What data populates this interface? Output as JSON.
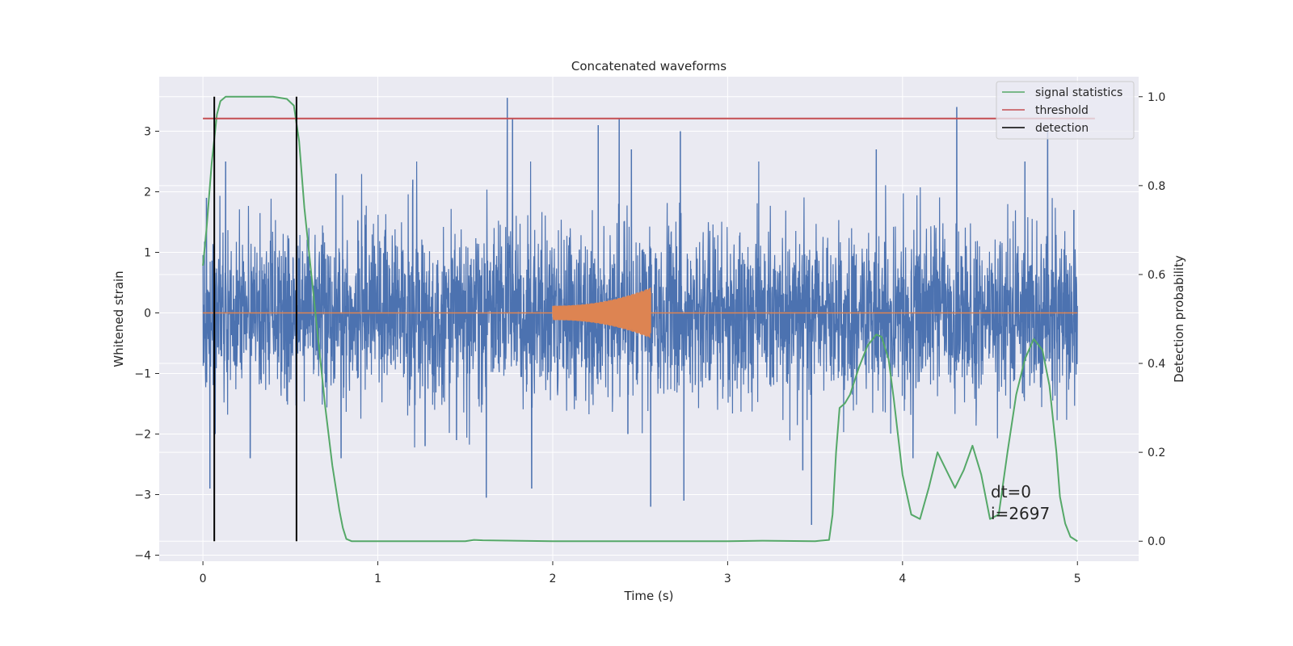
{
  "chart_data": {
    "type": "line",
    "title": "Concatenated waveforms",
    "xlabel": "Time (s)",
    "ylabel": "Whitened strain",
    "ylabel_right": "Detection probability",
    "xlim": [
      -0.25,
      5.35
    ],
    "ylim": [
      -4.1,
      3.9
    ],
    "ylim_right": [
      -0.045,
      1.045
    ],
    "x_ticks": [
      0,
      1,
      2,
      3,
      4,
      5
    ],
    "y_ticks": [
      -4,
      -3,
      -2,
      -1,
      0,
      1,
      2,
      3
    ],
    "y_ticks_right": [
      0.0,
      0.2,
      0.4,
      0.6,
      0.8,
      1.0
    ],
    "x_tick_labels": [
      "0",
      "1",
      "2",
      "3",
      "4",
      "5"
    ],
    "y_tick_labels": [
      "−4",
      "−3",
      "−2",
      "−1",
      "0",
      "1",
      "2",
      "3"
    ],
    "y_tick_labels_right": [
      "0.0",
      "0.2",
      "0.4",
      "0.6",
      "0.8",
      "1.0"
    ],
    "grid": true,
    "legend_position": "top-right",
    "legend": [
      "signal statistics",
      "threshold",
      "detection"
    ],
    "colors": {
      "background": "#eaeaf2",
      "grid": "#ffffff",
      "strain": "#4c72b0",
      "template": "#dd8452",
      "statistics": "#55a868",
      "threshold": "#c44e52",
      "detection": "#000000"
    },
    "series": [
      {
        "name": "",
        "axis": "left",
        "kind": "noise",
        "x_range": [
          0,
          5
        ],
        "typical_envelope": [
          -1.4,
          1.6
        ],
        "peak_points": [
          {
            "x": 0.02,
            "y": 1.9
          },
          {
            "x": 0.04,
            "y": -2.9
          },
          {
            "x": 0.07,
            "y": -2.0
          },
          {
            "x": 0.13,
            "y": 2.5
          },
          {
            "x": 0.27,
            "y": -2.4
          },
          {
            "x": 0.76,
            "y": 2.3
          },
          {
            "x": 0.79,
            "y": -2.4
          },
          {
            "x": 1.2,
            "y": 2.2
          },
          {
            "x": 1.27,
            "y": -2.2
          },
          {
            "x": 1.45,
            "y": -2.1
          },
          {
            "x": 1.62,
            "y": -3.05
          },
          {
            "x": 1.74,
            "y": 3.55
          },
          {
            "x": 1.77,
            "y": 3.2
          },
          {
            "x": 1.88,
            "y": -2.9
          },
          {
            "x": 2.26,
            "y": 3.1
          },
          {
            "x": 2.38,
            "y": 3.2
          },
          {
            "x": 2.43,
            "y": -2.0
          },
          {
            "x": 2.45,
            "y": 2.7
          },
          {
            "x": 2.56,
            "y": -3.2
          },
          {
            "x": 2.73,
            "y": 3.0
          },
          {
            "x": 2.75,
            "y": -3.1
          },
          {
            "x": 3.43,
            "y": -2.6
          },
          {
            "x": 3.48,
            "y": -3.5
          },
          {
            "x": 3.85,
            "y": 2.7
          },
          {
            "x": 4.06,
            "y": -2.4
          },
          {
            "x": 4.31,
            "y": 3.4
          },
          {
            "x": 4.7,
            "y": 2.5
          },
          {
            "x": 4.83,
            "y": 3.0
          },
          {
            "x": 4.98,
            "y": 1.7
          }
        ]
      },
      {
        "name": "",
        "axis": "left",
        "kind": "chirp",
        "x_range": [
          2.0,
          2.56
        ],
        "y_value": 0,
        "amplitude_start": 0.12,
        "amplitude_end": 0.42
      },
      {
        "name": "signal statistics",
        "axis": "right",
        "x": [
          0.0,
          0.02,
          0.05,
          0.08,
          0.1,
          0.13,
          0.2,
          0.3,
          0.4,
          0.48,
          0.52,
          0.55,
          0.58,
          0.62,
          0.66,
          0.7,
          0.74,
          0.78,
          0.8,
          0.82,
          0.85,
          0.9,
          1.2,
          1.5,
          1.55,
          1.6,
          2.0,
          3.0,
          3.2,
          3.5,
          3.58,
          3.6,
          3.62,
          3.64,
          3.67,
          3.7,
          3.75,
          3.8,
          3.85,
          3.88,
          3.92,
          3.95,
          4.0,
          4.05,
          4.1,
          4.15,
          4.2,
          4.25,
          4.3,
          4.35,
          4.4,
          4.45,
          4.5,
          4.55,
          4.6,
          4.65,
          4.7,
          4.75,
          4.8,
          4.84,
          4.88,
          4.9,
          4.93,
          4.96,
          5.0
        ],
        "y": [
          0.62,
          0.7,
          0.85,
          0.96,
          0.99,
          1.0,
          1.0,
          1.0,
          1.0,
          0.995,
          0.98,
          0.9,
          0.75,
          0.6,
          0.45,
          0.3,
          0.17,
          0.07,
          0.03,
          0.005,
          0.0,
          0.0,
          0.0,
          0.0,
          0.003,
          0.002,
          0.0,
          0.0,
          0.001,
          0.0,
          0.003,
          0.06,
          0.2,
          0.3,
          0.31,
          0.33,
          0.39,
          0.44,
          0.465,
          0.46,
          0.41,
          0.32,
          0.15,
          0.06,
          0.05,
          0.12,
          0.2,
          0.16,
          0.12,
          0.16,
          0.215,
          0.15,
          0.05,
          0.06,
          0.2,
          0.33,
          0.41,
          0.455,
          0.43,
          0.35,
          0.2,
          0.1,
          0.04,
          0.01,
          0.0
        ]
      },
      {
        "name": "threshold",
        "axis": "right",
        "x": [
          0.0,
          5.1
        ],
        "y": [
          0.951,
          0.951
        ]
      },
      {
        "name": "detection",
        "axis": "right",
        "kind": "vlines",
        "x": [
          0.065,
          0.535
        ],
        "y_range": [
          0.0,
          1.0
        ]
      }
    ],
    "annotations": [
      "dt=0",
      "i=2697"
    ],
    "annotation_x": 4.5,
    "annotation_y": -3.0
  }
}
